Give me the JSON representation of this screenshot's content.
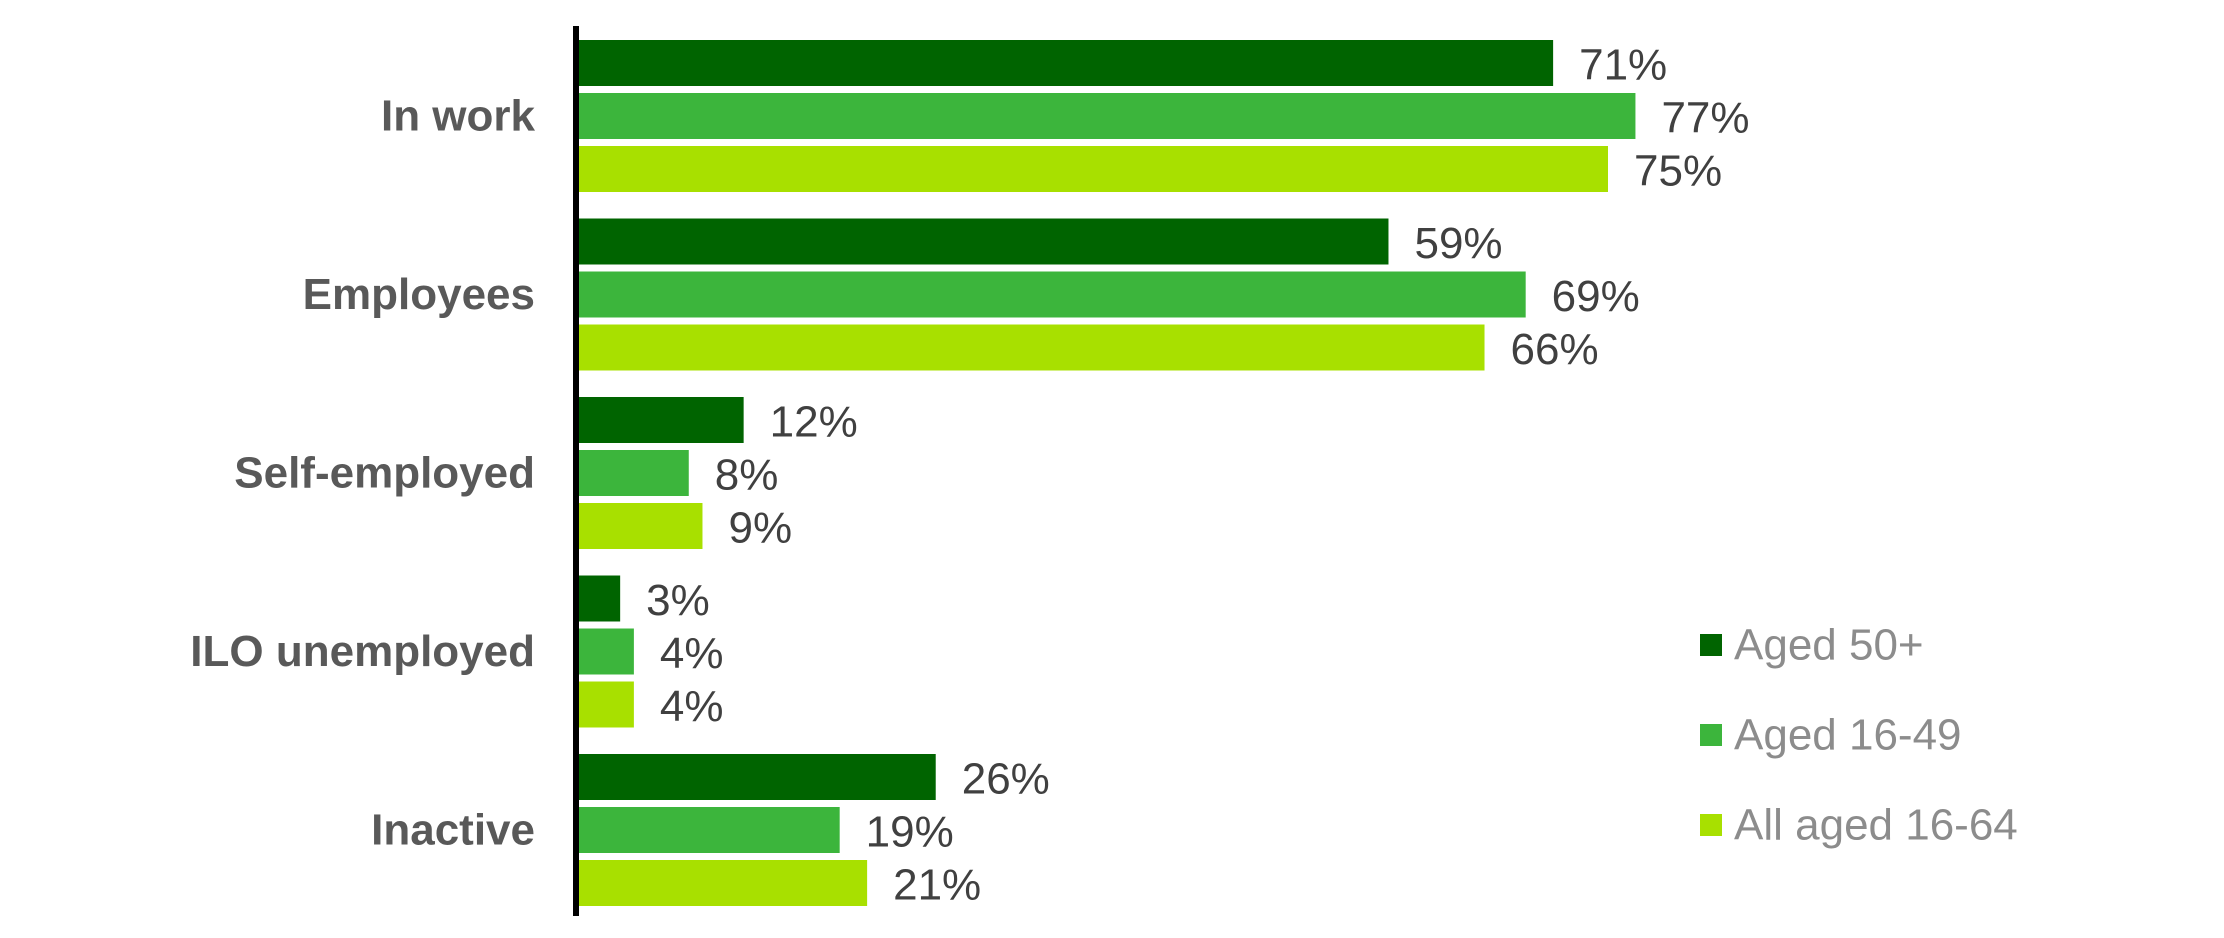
{
  "chart_data": {
    "type": "bar",
    "orientation": "horizontal",
    "categories": [
      "In work",
      "Employees",
      "Self-employed",
      "ILO unemployed",
      "Inactive"
    ],
    "series": [
      {
        "name": "Aged 50+",
        "color": "#006400",
        "values": [
          71,
          59,
          12,
          3,
          26
        ],
        "labels": [
          "71%",
          "59%",
          "12%",
          "3%",
          "26%"
        ]
      },
      {
        "name": "Aged 16-49",
        "color": "#3cb53c",
        "values": [
          77,
          69,
          8,
          4,
          19
        ],
        "labels": [
          "77%",
          "69%",
          "8%",
          "4%",
          "19%"
        ]
      },
      {
        "name": "All aged 16-64",
        "color": "#a8e000",
        "values": [
          75,
          66,
          9,
          4,
          21
        ],
        "labels": [
          "75%",
          "66%",
          "9%",
          "4%",
          "21%"
        ]
      }
    ],
    "value_unit": "%",
    "xlim": [
      0,
      100
    ],
    "grid": false,
    "legend_position": "bottom-right"
  }
}
